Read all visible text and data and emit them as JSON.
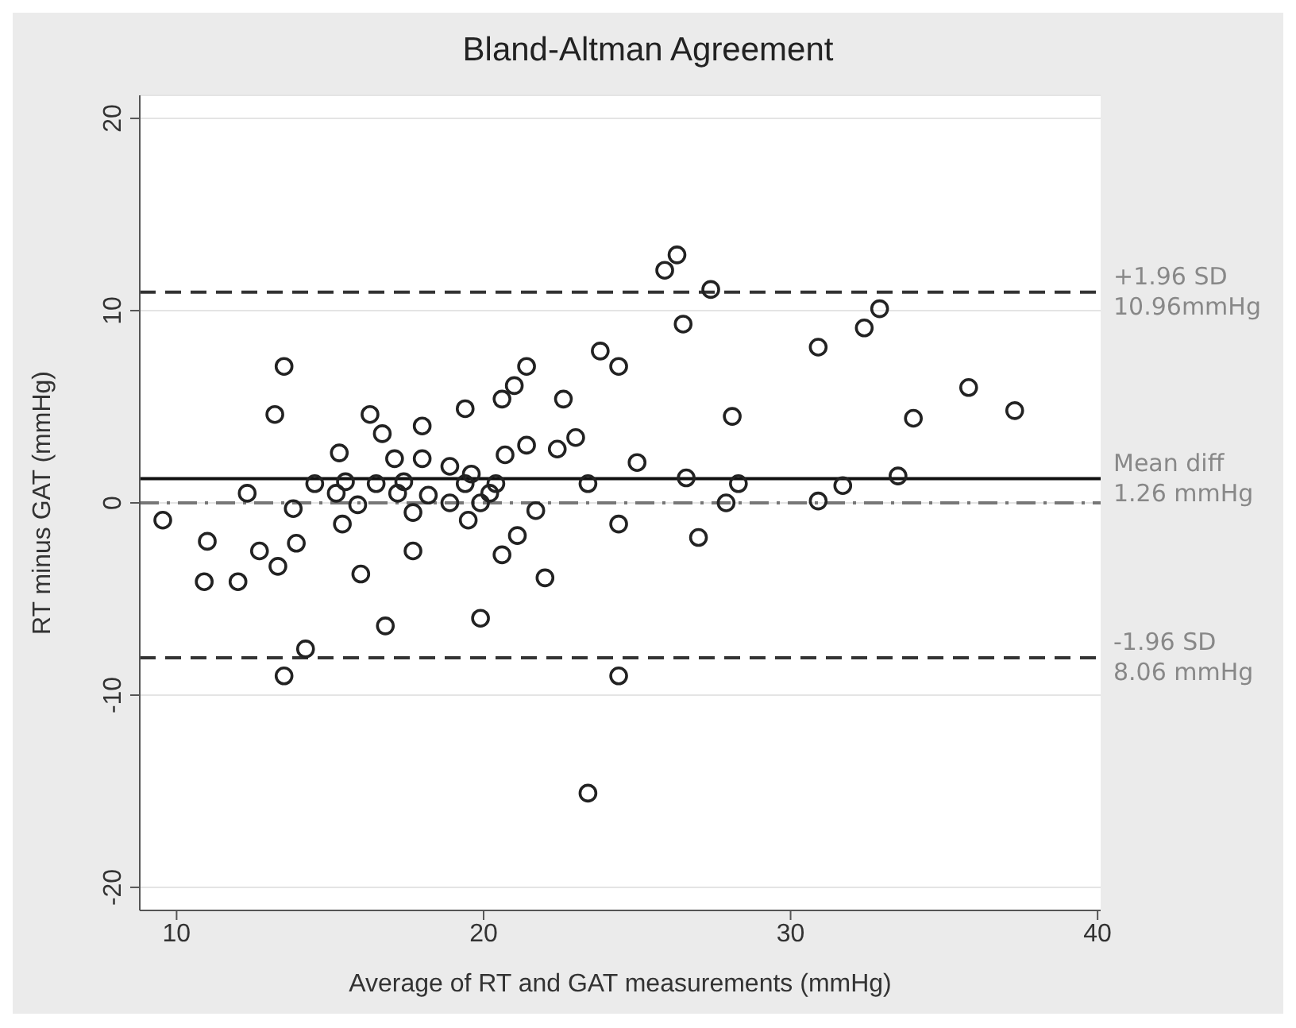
{
  "chart_data": {
    "type": "scatter",
    "title": "Bland-Altman Agreement",
    "xlabel": "Average of RT and GAT measurements (mmHg)",
    "ylabel": "RT minus GAT (mmHg)",
    "xlim": [
      8.8,
      40.1
    ],
    "xticks": [
      10,
      20,
      30,
      40
    ],
    "ylim": [
      -21.2,
      21.2
    ],
    "yticks": [
      -20,
      -10,
      0,
      10,
      20
    ],
    "grid": "y",
    "marker": "circle",
    "series": [
      {
        "color": "#222222",
        "x": [
          9.55,
          11.0,
          10.9,
          12.0,
          12.3,
          12.7,
          13.3,
          13.2,
          13.5,
          13.5,
          13.8,
          13.9,
          14.2,
          14.5,
          15.2,
          15.3,
          15.5,
          15.4,
          15.9,
          16.0,
          16.3,
          16.5,
          16.7,
          16.8,
          17.1,
          17.2,
          17.4,
          17.7,
          17.7,
          18.0,
          18.0,
          18.2,
          18.9,
          18.9,
          19.4,
          19.4,
          19.5,
          19.6,
          19.9,
          19.9,
          20.2,
          20.4,
          20.6,
          21.0,
          21.4,
          20.7,
          21.4,
          21.1,
          20.6,
          21.7,
          22.0,
          22.4,
          22.6,
          23.0,
          23.4,
          23.4,
          23.8,
          24.4,
          24.4,
          24.4,
          25.0,
          25.9,
          26.3,
          26.5,
          26.6,
          27.0,
          27.4,
          27.9,
          28.1,
          28.3,
          30.9,
          30.9,
          31.7,
          32.4,
          32.9,
          33.5,
          34.0,
          35.8,
          37.3
        ],
        "values": [
          -0.9,
          -2.0,
          -4.1,
          -4.1,
          0.5,
          -2.5,
          -3.3,
          4.6,
          7.1,
          -9.0,
          -0.3,
          -2.1,
          -7.6,
          1.0,
          0.5,
          2.6,
          1.1,
          -1.1,
          -0.1,
          -3.7,
          4.6,
          1.0,
          3.6,
          -6.4,
          2.3,
          0.5,
          1.1,
          -0.5,
          -2.5,
          4.0,
          2.3,
          0.4,
          1.9,
          0.0,
          4.9,
          1.0,
          -0.9,
          1.5,
          0.0,
          -6.0,
          0.5,
          1.0,
          5.4,
          6.1,
          7.1,
          2.5,
          3.0,
          -1.7,
          -2.7,
          -0.4,
          -3.9,
          2.8,
          5.4,
          3.4,
          1.0,
          -15.1,
          7.9,
          7.1,
          -1.1,
          -9.0,
          2.1,
          12.1,
          12.9,
          9.3,
          1.3,
          -1.8,
          11.1,
          0.0,
          4.5,
          1.0,
          8.1,
          0.1,
          0.9,
          9.1,
          10.1,
          1.4,
          4.4,
          6.0,
          4.8
        ]
      }
    ],
    "ref_lines": [
      {
        "axis": "y",
        "value": 10.96,
        "label": "+1.96 SD\n10.96mmHg",
        "color": "#333333",
        "line_style": "dashed"
      },
      {
        "axis": "y",
        "value": 1.26,
        "label": "Mean diff\n1.26 mmHg",
        "color": "#111111",
        "line_style": "solid"
      },
      {
        "axis": "y",
        "value": 0,
        "color": "#777777",
        "line_style": "dotted"
      },
      {
        "axis": "y",
        "value": -8.06,
        "label": "-1.96 SD\n8.06 mmHg",
        "color": "#333333",
        "line_style": "dashed"
      }
    ]
  }
}
